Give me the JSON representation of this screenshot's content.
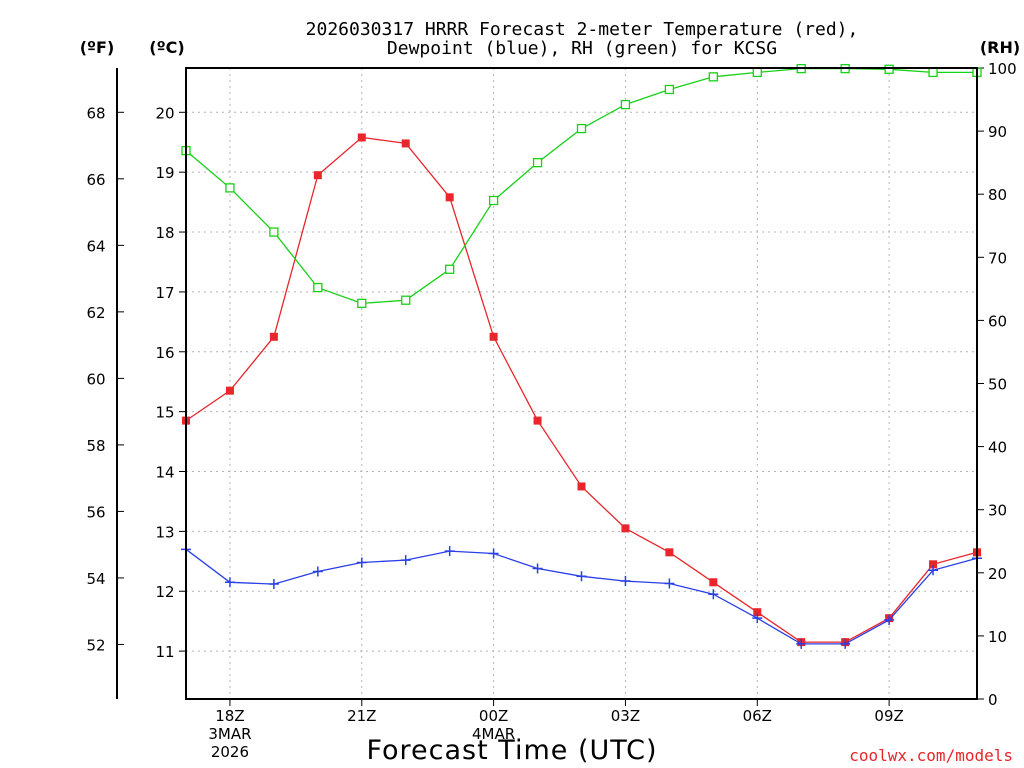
{
  "chart_data": {
    "type": "line",
    "title_line1": "2026030317 HRRR Forecast 2-meter Temperature (red),",
    "title_line2": "Dewpoint (blue), RH (green) for KCSG",
    "xlabel": "Forecast Time (UTC)",
    "credit": "coolwx.com/models",
    "units": {
      "fahrenheit": "(ºF)",
      "celsius": "(ºC)",
      "rh": "(RH)"
    },
    "x_hours_since_17z": [
      0,
      1,
      2,
      3,
      4,
      5,
      6,
      7,
      8,
      9,
      10,
      11,
      12,
      13,
      14,
      15,
      16,
      17,
      18
    ],
    "xlim": [
      0,
      18
    ],
    "x_ticks": [
      {
        "x": 1,
        "label": "18Z"
      },
      {
        "x": 4,
        "label": "21Z"
      },
      {
        "x": 7,
        "label": "00Z"
      },
      {
        "x": 10,
        "label": "03Z"
      },
      {
        "x": 13,
        "label": "06Z"
      },
      {
        "x": 16,
        "label": "09Z"
      }
    ],
    "date_labels": [
      {
        "x": 1,
        "lines": [
          "3MAR",
          "2026"
        ]
      },
      {
        "x": 7,
        "lines": [
          "4MAR"
        ]
      }
    ],
    "celsius_ticks": [
      11,
      12,
      13,
      14,
      15,
      16,
      17,
      18,
      19,
      20
    ],
    "fahrenheit_ticks": [
      52,
      54,
      56,
      58,
      60,
      62,
      64,
      66,
      68
    ],
    "rh_ticks": [
      0,
      10,
      20,
      30,
      40,
      50,
      60,
      70,
      80,
      90,
      100
    ],
    "ylim_celsius": [
      10.2,
      20.74
    ],
    "ylim_rh": [
      0,
      100
    ],
    "grid": true,
    "series": [
      {
        "name": "2-meter Temperature",
        "color": "#e8262b",
        "marker": "filled-square",
        "axis": "celsius",
        "values": [
          14.85,
          15.35,
          16.25,
          18.95,
          19.58,
          19.48,
          18.58,
          16.25,
          14.85,
          13.75,
          13.05,
          12.65,
          12.15,
          11.65,
          11.15,
          11.15,
          11.55,
          12.45,
          12.65
        ]
      },
      {
        "name": "Dewpoint",
        "color": "#2a3fe6",
        "marker": "plus",
        "axis": "celsius",
        "values": [
          12.7,
          12.15,
          12.12,
          12.33,
          12.48,
          12.52,
          12.67,
          12.63,
          12.38,
          12.25,
          12.17,
          12.13,
          11.95,
          11.55,
          11.12,
          11.12,
          11.52,
          12.35,
          12.55
        ]
      },
      {
        "name": "RH",
        "color": "#17d117",
        "marker": "open-square",
        "axis": "rh",
        "values": [
          86.9,
          81.0,
          74.0,
          65.2,
          62.7,
          63.2,
          68.1,
          79.0,
          85.0,
          90.4,
          94.2,
          96.6,
          98.6,
          99.3,
          99.9,
          99.9,
          99.8,
          99.3,
          99.3
        ]
      }
    ]
  }
}
